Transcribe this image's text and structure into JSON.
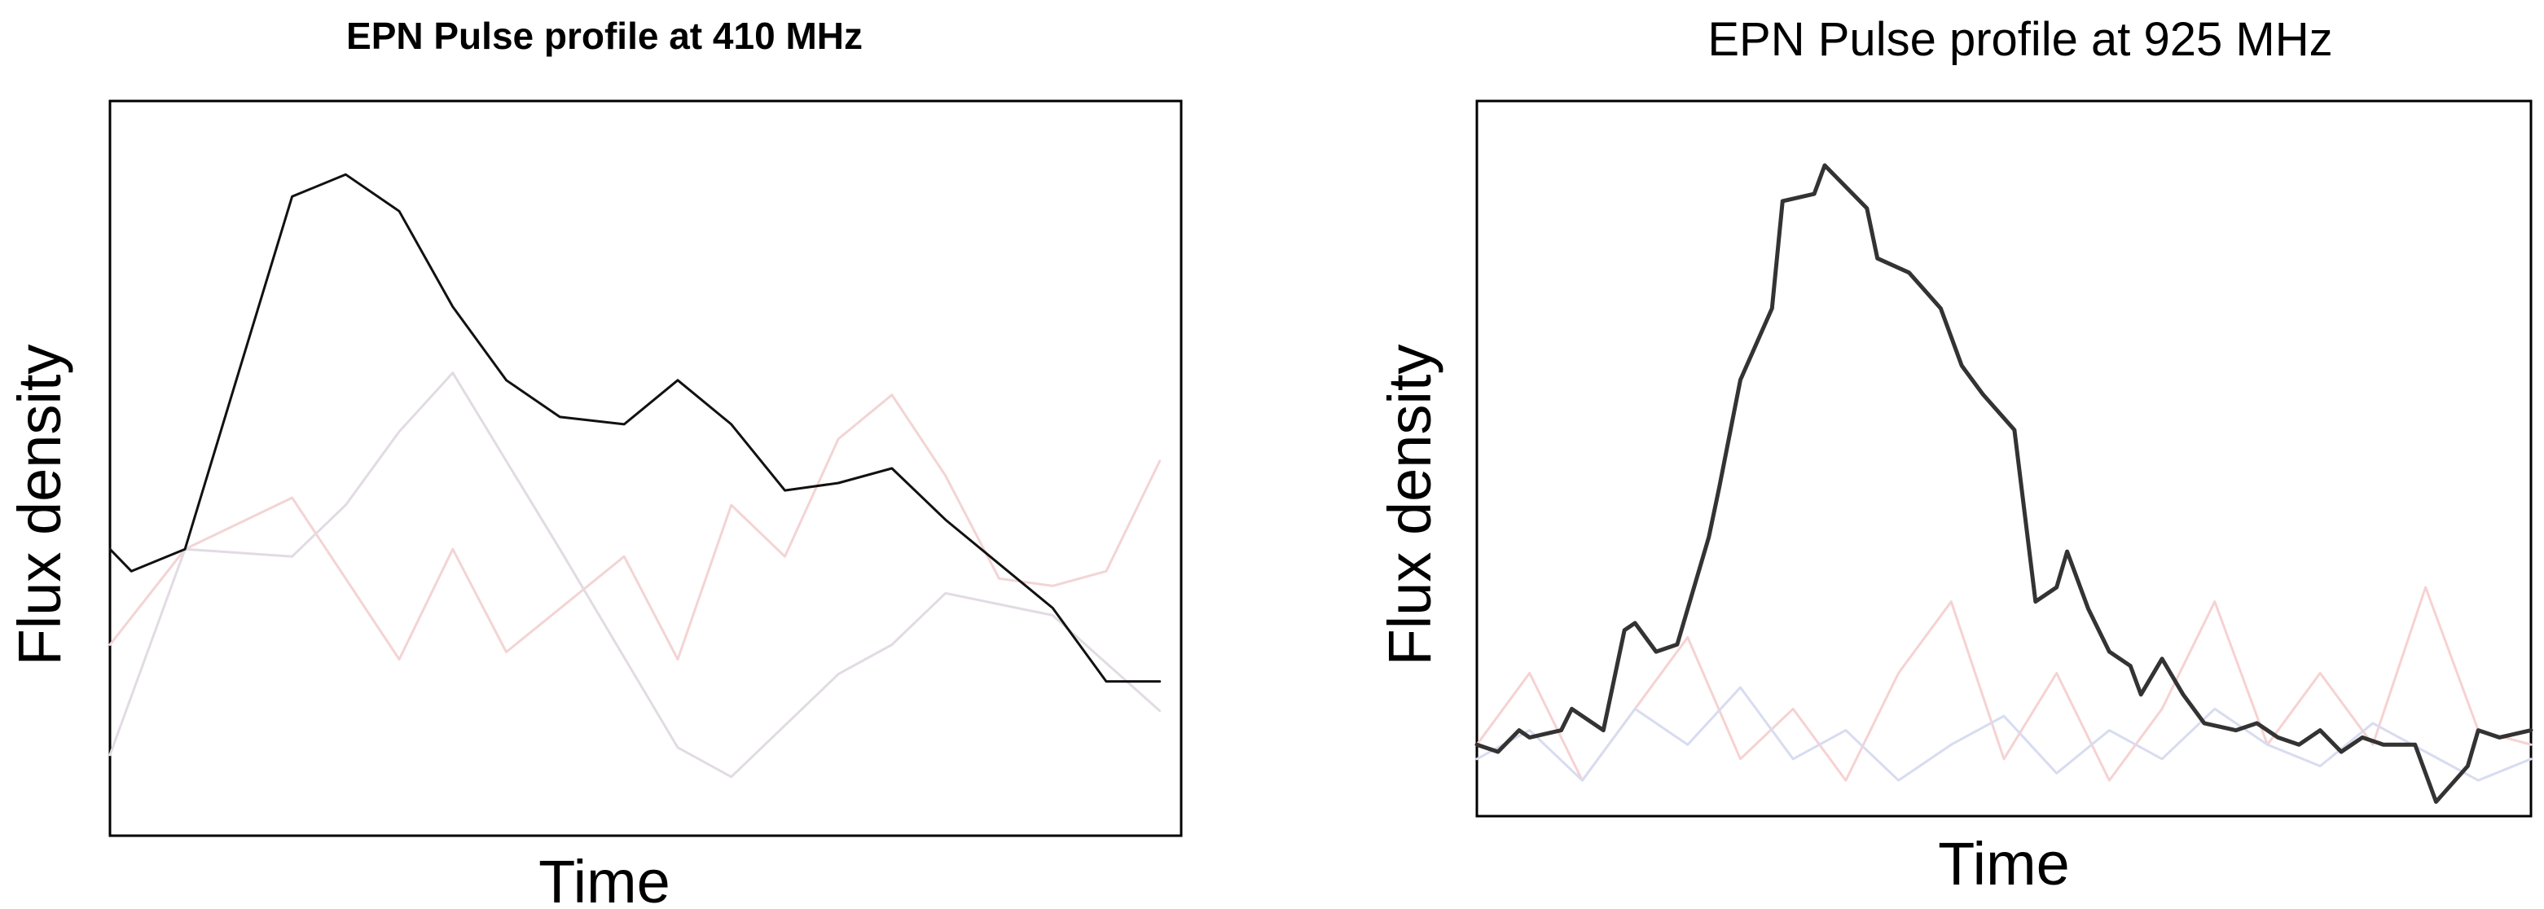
{
  "chart_data": [
    {
      "type": "line",
      "title": "EPN Pulse profile at 410 MHz",
      "xlabel": "Time",
      "ylabel": "Flux density",
      "xlim": [
        0,
        1
      ],
      "ylim": [
        0,
        1
      ],
      "series": [
        {
          "color": "#f3d4d4",
          "x": [
            0,
            0.07,
            0.17,
            0.27,
            0.32,
            0.37,
            0.48,
            0.53,
            0.58,
            0.63,
            0.68,
            0.73,
            0.78,
            0.83,
            0.88,
            0.93,
            0.98
          ],
          "values": [
            0.26,
            0.39,
            0.46,
            0.24,
            0.39,
            0.25,
            0.38,
            0.24,
            0.45,
            0.38,
            0.54,
            0.6,
            0.49,
            0.35,
            0.34,
            0.36,
            0.51
          ]
        },
        {
          "color": "#e2dbe3",
          "x": [
            0,
            0.07,
            0.17,
            0.22,
            0.27,
            0.32,
            0.37,
            0.42,
            0.53,
            0.58,
            0.68,
            0.73,
            0.78,
            0.88,
            0.98
          ],
          "values": [
            0.11,
            0.39,
            0.38,
            0.45,
            0.55,
            0.63,
            0.51,
            0.39,
            0.12,
            0.08,
            0.22,
            0.26,
            0.33,
            0.3,
            0.17
          ]
        },
        {
          "color": "#111111",
          "x": [
            0,
            0.02,
            0.07,
            0.12,
            0.17,
            0.22,
            0.27,
            0.32,
            0.37,
            0.42,
            0.48,
            0.53,
            0.58,
            0.63,
            0.68,
            0.73,
            0.78,
            0.83,
            0.88,
            0.93,
            0.98
          ],
          "values": [
            0.39,
            0.36,
            0.39,
            0.63,
            0.87,
            0.9,
            0.85,
            0.72,
            0.62,
            0.57,
            0.56,
            0.62,
            0.56,
            0.47,
            0.48,
            0.5,
            0.43,
            0.37,
            0.31,
            0.21,
            0.21
          ]
        }
      ]
    },
    {
      "type": "line",
      "title": "EPN Pulse profile at 925 MHz",
      "xlabel": "Time",
      "ylabel": "Flux density",
      "xlim": [
        0,
        1
      ],
      "ylim": [
        0,
        1
      ],
      "series": [
        {
          "color": "#f6d2d2",
          "x": [
            0,
            0.05,
            0.1,
            0.15,
            0.2,
            0.25,
            0.3,
            0.35,
            0.4,
            0.45,
            0.5,
            0.55,
            0.6,
            0.65,
            0.7,
            0.75,
            0.8,
            0.85,
            0.9,
            0.95,
            1
          ],
          "values": [
            0.1,
            0.2,
            0.05,
            0.15,
            0.25,
            0.08,
            0.15,
            0.05,
            0.2,
            0.3,
            0.08,
            0.2,
            0.05,
            0.15,
            0.3,
            0.1,
            0.2,
            0.1,
            0.32,
            0.12,
            0.1
          ]
        },
        {
          "color": "#d8dcf0",
          "x": [
            0,
            0.05,
            0.1,
            0.15,
            0.2,
            0.25,
            0.3,
            0.35,
            0.4,
            0.45,
            0.5,
            0.55,
            0.6,
            0.65,
            0.7,
            0.75,
            0.8,
            0.85,
            0.9,
            0.95,
            1
          ],
          "values": [
            0.08,
            0.12,
            0.05,
            0.15,
            0.1,
            0.18,
            0.08,
            0.12,
            0.05,
            0.1,
            0.14,
            0.06,
            0.12,
            0.08,
            0.15,
            0.1,
            0.07,
            0.13,
            0.09,
            0.05,
            0.08
          ]
        },
        {
          "color": "#333333",
          "x": [
            0,
            0.02,
            0.04,
            0.05,
            0.08,
            0.09,
            0.12,
            0.14,
            0.15,
            0.17,
            0.19,
            0.22,
            0.23,
            0.25,
            0.28,
            0.29,
            0.32,
            0.33,
            0.35,
            0.37,
            0.38,
            0.41,
            0.44,
            0.46,
            0.48,
            0.51,
            0.53,
            0.55,
            0.56,
            0.58,
            0.6,
            0.62,
            0.63,
            0.65,
            0.67,
            0.69,
            0.72,
            0.74,
            0.76,
            0.78,
            0.8,
            0.82,
            0.84,
            0.86,
            0.89,
            0.91,
            0.94,
            0.95,
            0.97,
            1.0
          ],
          "values": [
            0.1,
            0.09,
            0.12,
            0.11,
            0.12,
            0.15,
            0.12,
            0.26,
            0.27,
            0.23,
            0.24,
            0.39,
            0.46,
            0.61,
            0.71,
            0.86,
            0.87,
            0.91,
            0.88,
            0.85,
            0.78,
            0.76,
            0.71,
            0.63,
            0.59,
            0.54,
            0.3,
            0.32,
            0.37,
            0.29,
            0.23,
            0.21,
            0.17,
            0.22,
            0.17,
            0.13,
            0.12,
            0.13,
            0.11,
            0.1,
            0.12,
            0.09,
            0.11,
            0.1,
            0.1,
            0.02,
            0.07,
            0.12,
            0.11,
            0.12
          ]
        }
      ]
    }
  ]
}
